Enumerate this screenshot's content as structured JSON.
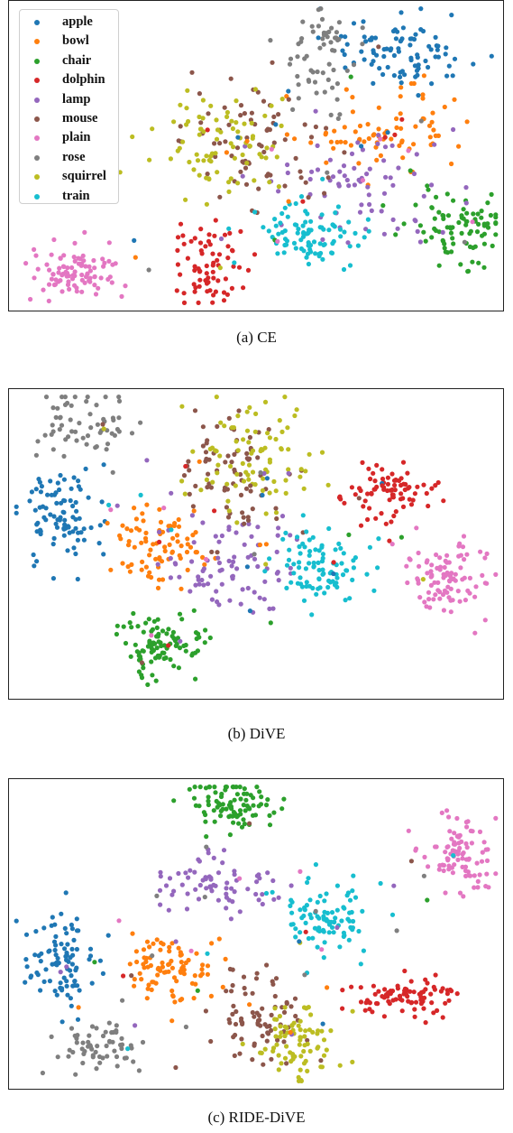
{
  "classes": [
    {
      "name": "apple",
      "color": "#1f77b4"
    },
    {
      "name": "bowl",
      "color": "#ff7f0e"
    },
    {
      "name": "chair",
      "color": "#2ca02c"
    },
    {
      "name": "dolphin",
      "color": "#d62728"
    },
    {
      "name": "lamp",
      "color": "#9467bd"
    },
    {
      "name": "mouse",
      "color": "#8c564b"
    },
    {
      "name": "plain",
      "color": "#e377c2"
    },
    {
      "name": "rose",
      "color": "#7f7f7f"
    },
    {
      "name": "squirrel",
      "color": "#bcbd22"
    },
    {
      "name": "train",
      "color": "#17becf"
    }
  ],
  "chart_data": [
    {
      "type": "scatter",
      "caption": "(a)  CE",
      "legend_position": "upper-left",
      "axes_visible": false,
      "clusters": [
        {
          "class": "apple",
          "cx": 0.79,
          "cy": 0.17,
          "sx": 0.08,
          "sy": 0.055,
          "n": 90
        },
        {
          "class": "bowl",
          "cx": 0.77,
          "cy": 0.43,
          "sx": 0.08,
          "sy": 0.06,
          "n": 75
        },
        {
          "class": "chair",
          "cx": 0.91,
          "cy": 0.72,
          "sx": 0.05,
          "sy": 0.06,
          "n": 85
        },
        {
          "class": "dolphin",
          "cx": 0.41,
          "cy": 0.85,
          "sx": 0.04,
          "sy": 0.07,
          "n": 70
        },
        {
          "class": "lamp",
          "cx": 0.71,
          "cy": 0.59,
          "sx": 0.1,
          "sy": 0.09,
          "n": 70
        },
        {
          "class": "mouse",
          "cx": 0.5,
          "cy": 0.46,
          "sx": 0.07,
          "sy": 0.1,
          "n": 70
        },
        {
          "class": "plain",
          "cx": 0.13,
          "cy": 0.88,
          "sx": 0.045,
          "sy": 0.045,
          "n": 90
        },
        {
          "class": "rose",
          "cx": 0.63,
          "cy": 0.18,
          "sx": 0.04,
          "sy": 0.1,
          "n": 60
        },
        {
          "class": "squirrel",
          "cx": 0.43,
          "cy": 0.47,
          "sx": 0.07,
          "sy": 0.09,
          "n": 80
        },
        {
          "class": "train",
          "cx": 0.62,
          "cy": 0.76,
          "sx": 0.055,
          "sy": 0.055,
          "n": 90
        }
      ]
    },
    {
      "type": "scatter",
      "caption": "(b)  DiVE",
      "legend_position": "none",
      "axes_visible": false,
      "clusters": [
        {
          "class": "apple",
          "cx": 0.11,
          "cy": 0.4,
          "sx": 0.045,
          "sy": 0.08,
          "n": 90
        },
        {
          "class": "bowl",
          "cx": 0.31,
          "cy": 0.5,
          "sx": 0.045,
          "sy": 0.07,
          "n": 80
        },
        {
          "class": "chair",
          "cx": 0.31,
          "cy": 0.83,
          "sx": 0.04,
          "sy": 0.055,
          "n": 95
        },
        {
          "class": "dolphin",
          "cx": 0.77,
          "cy": 0.33,
          "sx": 0.045,
          "sy": 0.05,
          "n": 80
        },
        {
          "class": "lamp",
          "cx": 0.44,
          "cy": 0.55,
          "sx": 0.07,
          "sy": 0.08,
          "n": 80
        },
        {
          "class": "mouse",
          "cx": 0.45,
          "cy": 0.27,
          "sx": 0.06,
          "sy": 0.1,
          "n": 70
        },
        {
          "class": "plain",
          "cx": 0.89,
          "cy": 0.61,
          "sx": 0.04,
          "sy": 0.055,
          "n": 95
        },
        {
          "class": "rose",
          "cx": 0.15,
          "cy": 0.12,
          "sx": 0.05,
          "sy": 0.05,
          "n": 60
        },
        {
          "class": "squirrel",
          "cx": 0.5,
          "cy": 0.21,
          "sx": 0.07,
          "sy": 0.09,
          "n": 85
        },
        {
          "class": "train",
          "cx": 0.62,
          "cy": 0.58,
          "sx": 0.05,
          "sy": 0.06,
          "n": 90
        }
      ]
    },
    {
      "type": "scatter",
      "caption": "(c)  RIDE-DiVE",
      "legend_position": "none",
      "axes_visible": false,
      "clusters": [
        {
          "class": "apple",
          "cx": 0.1,
          "cy": 0.58,
          "sx": 0.035,
          "sy": 0.075,
          "n": 90
        },
        {
          "class": "bowl",
          "cx": 0.32,
          "cy": 0.6,
          "sx": 0.04,
          "sy": 0.06,
          "n": 85
        },
        {
          "class": "chair",
          "cx": 0.45,
          "cy": 0.08,
          "sx": 0.05,
          "sy": 0.05,
          "n": 90
        },
        {
          "class": "dolphin",
          "cx": 0.8,
          "cy": 0.7,
          "sx": 0.06,
          "sy": 0.035,
          "n": 85
        },
        {
          "class": "lamp",
          "cx": 0.42,
          "cy": 0.34,
          "sx": 0.07,
          "sy": 0.05,
          "n": 70
        },
        {
          "class": "mouse",
          "cx": 0.5,
          "cy": 0.79,
          "sx": 0.05,
          "sy": 0.08,
          "n": 75
        },
        {
          "class": "plain",
          "cx": 0.91,
          "cy": 0.25,
          "sx": 0.04,
          "sy": 0.06,
          "n": 90
        },
        {
          "class": "rose",
          "cx": 0.18,
          "cy": 0.87,
          "sx": 0.045,
          "sy": 0.04,
          "n": 60
        },
        {
          "class": "squirrel",
          "cx": 0.59,
          "cy": 0.84,
          "sx": 0.045,
          "sy": 0.07,
          "n": 80
        },
        {
          "class": "train",
          "cx": 0.64,
          "cy": 0.45,
          "sx": 0.05,
          "sy": 0.06,
          "n": 90
        }
      ]
    }
  ]
}
